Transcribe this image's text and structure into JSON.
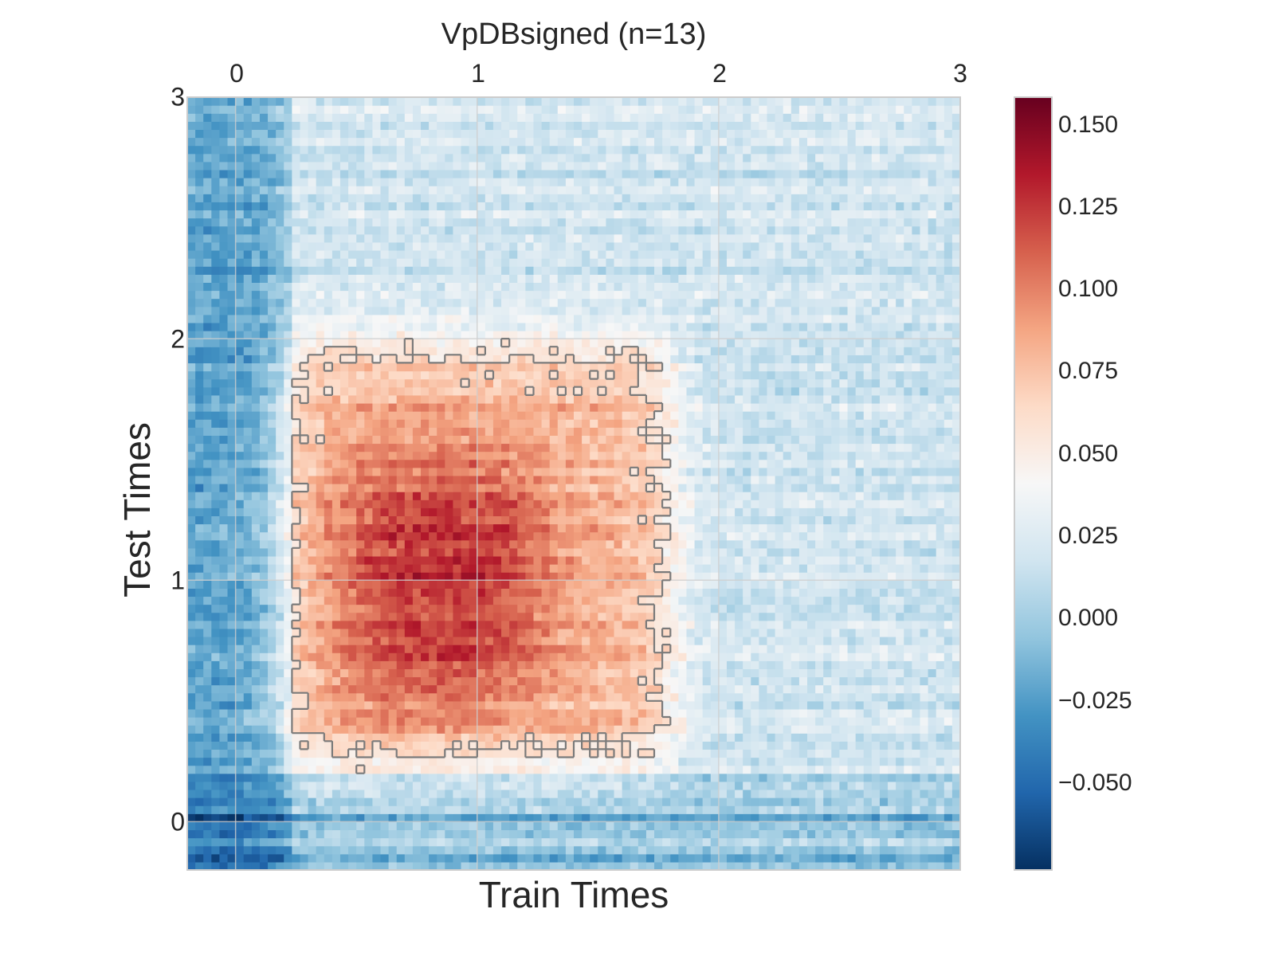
{
  "chart_data": {
    "type": "heatmap",
    "title": "VpDBsigned (n=13)",
    "xlabel": "Train Times",
    "ylabel": "Test Times",
    "xlim": [
      -0.2,
      3.0
    ],
    "ylim": [
      -0.2,
      3.0
    ],
    "xticks": [
      "0",
      "1",
      "2",
      "3"
    ],
    "yticks": [
      "0",
      "1",
      "2",
      "3"
    ],
    "x_tick_position": "top",
    "grid": true,
    "colormap": "RdBu_r",
    "colorbar": {
      "vmin": -0.075,
      "vmax": 0.16,
      "ticks": [
        "0.150",
        "0.125",
        "0.100",
        "0.075",
        "0.050",
        "0.025",
        "0.000",
        "−0.025",
        "−0.050"
      ],
      "tick_values": [
        0.15,
        0.125,
        0.1,
        0.075,
        0.05,
        0.025,
        0.0,
        -0.025,
        -0.05
      ]
    },
    "significance_contour": true,
    "region_summary": {
      "background_value": 0.02,
      "early_train_column_value": -0.02,
      "early_test_rows_value": -0.01,
      "peak_region_value": 0.13,
      "peak_region_train_range": [
        0.45,
        1.25
      ],
      "peak_region_test_range": [
        0.5,
        1.5
      ],
      "significant_region_train_range": [
        0.2,
        1.8
      ],
      "significant_region_test_range": [
        0.25,
        2.0
      ]
    }
  }
}
